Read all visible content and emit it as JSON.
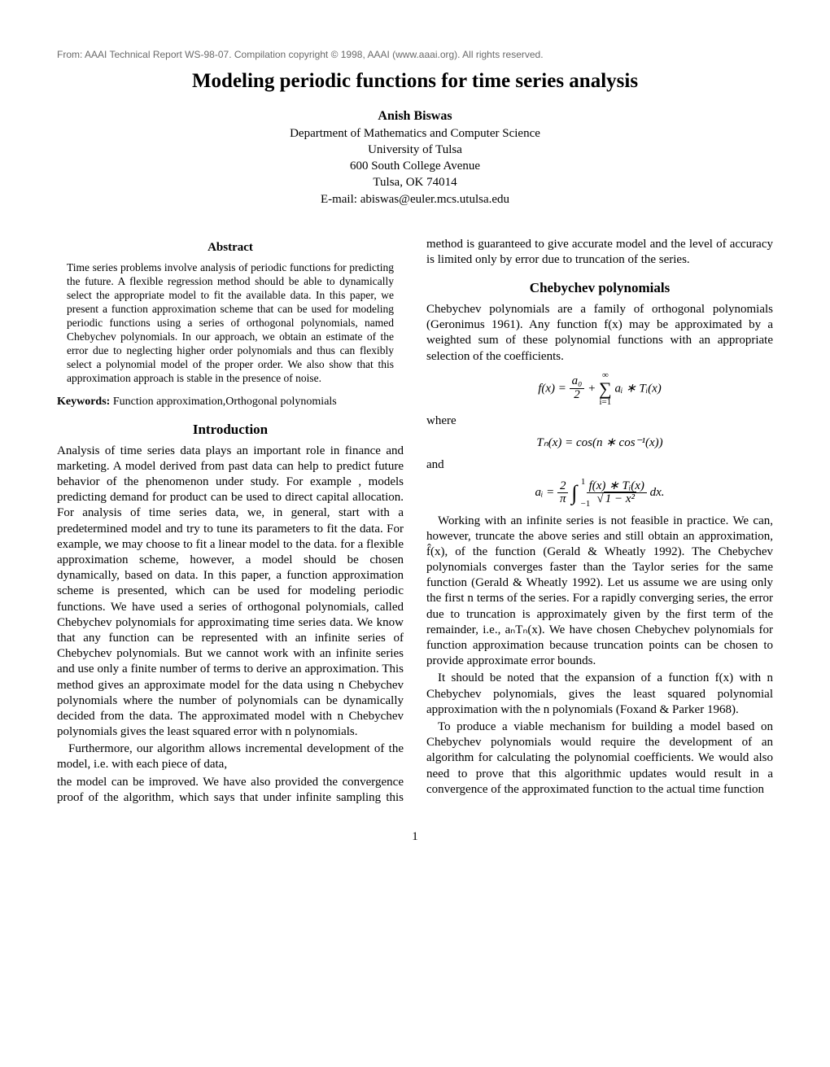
{
  "header_note": "From: AAAI Technical Report WS-98-07. Compilation copyright © 1998, AAAI (www.aaai.org). All rights reserved.",
  "title": "Modeling periodic functions for time series analysis",
  "author": {
    "name": "Anish Biswas",
    "affiliation_line1": "Department of Mathematics and Computer Science",
    "affiliation_line2": "University of Tulsa",
    "affiliation_line3": "600 South College Avenue",
    "affiliation_line4": "Tulsa, OK 74014",
    "email": "E-mail: abiswas@euler.mcs.utulsa.edu"
  },
  "abstract": {
    "heading": "Abstract",
    "body": "Time series problems involve analysis of periodic functions for predicting the future. A flexible regression method should be able to dynamically select the appropriate model to fit the available data. In this paper, we present a function approximation scheme that can be used for modeling periodic functions using a series of orthogonal polynomials, named Chebychev polynomials. In our approach, we obtain an estimate of the error due to neglecting higher order polynomials and thus can flexibly select a polynomial model of the proper order. We also show that this approximation approach is stable in the presence of noise."
  },
  "keywords": {
    "label": "Keywords:",
    "text": " Function approximation,Orthogonal polynomials"
  },
  "sections": {
    "introduction": {
      "heading": "Introduction",
      "p1": "Analysis of time series data plays an important role in finance and marketing. A model derived from past data can help to predict future behavior of the phenomenon under study. For example , models predicting demand for product can be used to direct capital allocation. For analysis of time series data, we, in general, start with a predetermined model and try to tune its parameters to fit the data. For example, we may choose to fit a linear model to the data. for a flexible approximation scheme, however, a model should be chosen dynamically, based on data. In this paper, a function approximation scheme is presented, which can be used for modeling periodic functions. We have used a series of orthogonal polynomials, called Chebychev polynomials for approximating time series data. We know that any function can be represented with an infinite series of Chebychev polynomials. But we cannot work with an infinite series and use only a finite number of terms to derive an approximation. This method gives an approximate model for the data using n Chebychev polynomials where the number of polynomials can be dynamically decided from the data. The approximated model with n Chebychev polynomials gives the least squared error with n polynomials.",
      "p2": "Furthermore, our algorithm allows incremental development of the model, i.e. with each piece of data,",
      "col2_cont": "the model can be improved. We have also provided the convergence proof of the algorithm, which says that under infinite sampling this method is guaranteed to give accurate model and the level of accuracy is limited only by error due to truncation of the series."
    },
    "chebychev": {
      "heading": "Chebychev polynomials",
      "p1": "Chebychev polynomials are a family of orthogonal polynomials (Geronimus 1961). Any function f(x) may be approximated by a weighted sum of these polynomial functions with an appropriate selection of the coefficients.",
      "where": "where",
      "and": "and",
      "p2": "Working with an infinite series is not feasible in practice. We can, however, truncate the above series and still obtain an approximation, f̂(x), of the function (Gerald & Wheatly 1992). The Chebychev polynomials converges faster than the Taylor series for the same function (Gerald & Wheatly 1992). Let us assume we are using only the first n terms of the series. For a rapidly converging series, the error due to truncation is approximately given by the first term of the remainder, i.e., aₙTₙ(x). We have chosen Chebychev polynomials for function approximation because truncation points can be chosen to provide approximate error bounds.",
      "p3": "It should be noted that the expansion of a function f(x) with n Chebychev polynomials, gives the least squared polynomial approximation with the n polynomials (Foxand & Parker 1968).",
      "p4": "To produce a viable mechanism for building a model based on Chebychev polynomials would require the development of an algorithm for calculating the polynomial coefficients. We would also need to prove that this algorithmic updates would result in a convergence of the approximated function to the actual time function"
    }
  },
  "equations": {
    "eq1_prefix": "f(x) = ",
    "eq1_a0": "a₀",
    "eq1_2": "2",
    "eq1_plus": " + ",
    "eq1_sum_top": "∞",
    "eq1_sum_bot": "i=1",
    "eq1_tail": " aᵢ ∗ Tᵢ(x)",
    "eq2": "Tₙ(x) = cos(n ∗ cos⁻¹(x))",
    "eq3_prefix": "aᵢ = ",
    "eq3_2": "2",
    "eq3_pi": "π",
    "eq3_int_top": "1",
    "eq3_int_bot": "−1",
    "eq3_frac_num": "f(x) ∗ Tᵢ(x)",
    "eq3_sqrt": "1 − x²",
    "eq3_tail": " dx."
  },
  "page_number": "1"
}
